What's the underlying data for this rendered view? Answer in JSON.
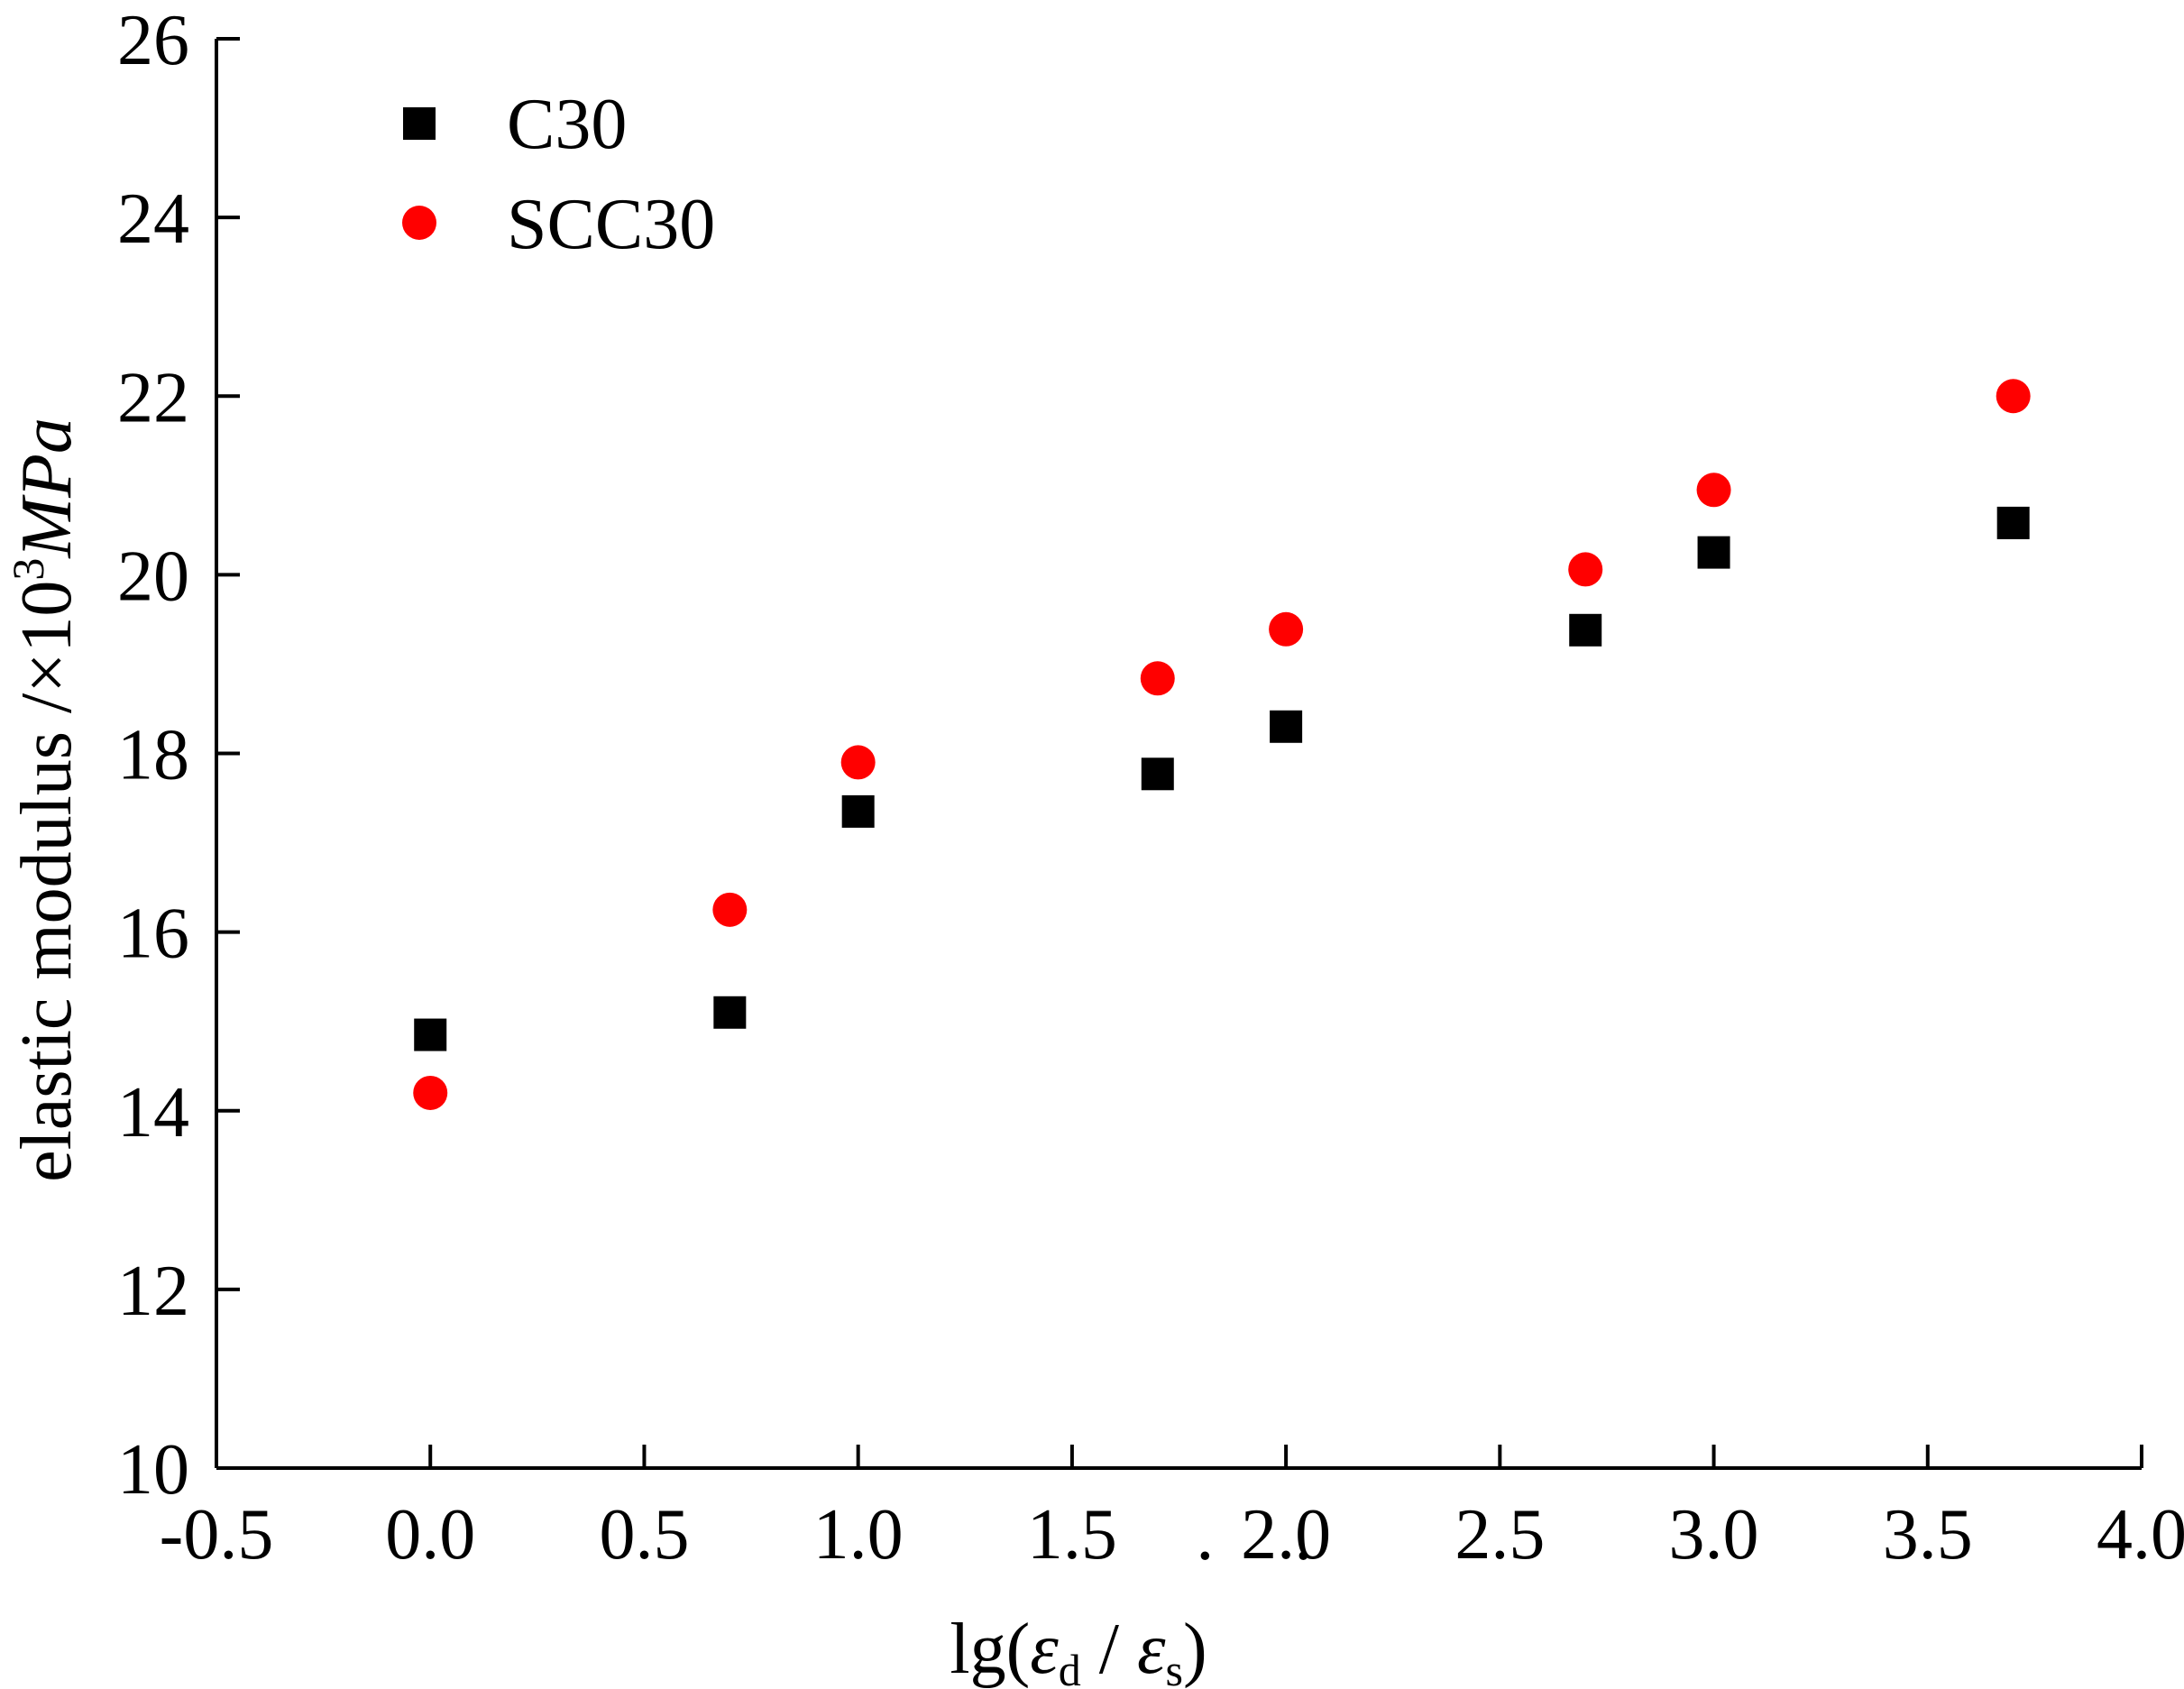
{
  "chart_data": {
    "type": "scatter",
    "title": "",
    "xlabel": {
      "base": "lg(",
      "eps": "ε",
      "sub_d": "d",
      "slash": " / ",
      "sub_s": "s",
      "dot": "·",
      "close": ")"
    },
    "ylabel": {
      "text": "elastic modulus /×10",
      "sup": "3",
      "unit": "MPa"
    },
    "xlim": [
      -0.5,
      4.0
    ],
    "ylim": [
      10,
      26
    ],
    "x_ticks": [
      -0.5,
      0.0,
      0.5,
      1.0,
      1.5,
      2.0,
      2.5,
      3.0,
      3.5,
      4.0
    ],
    "x_tick_labels": [
      "-0.5",
      "0.0",
      "0.5",
      "1.0",
      "1.5",
      "2.0",
      "2.5",
      "3.0",
      "3.5",
      "4.0"
    ],
    "y_ticks": [
      10,
      12,
      14,
      16,
      18,
      20,
      22,
      24,
      26
    ],
    "y_tick_labels": [
      "10",
      "12",
      "14",
      "16",
      "18",
      "20",
      "22",
      "24",
      "26"
    ],
    "legend_position": "top-left",
    "series": [
      {
        "name": "C30",
        "marker": "square",
        "color": "#000000",
        "x": [
          0.0,
          0.7,
          1.0,
          1.7,
          2.0,
          2.7,
          3.0,
          3.7
        ],
        "y": [
          14.85,
          15.1,
          17.35,
          17.77,
          18.3,
          19.38,
          20.25,
          20.58
        ]
      },
      {
        "name": "SCC30",
        "marker": "circle",
        "color": "#ff0000",
        "x": [
          0.0,
          0.7,
          1.0,
          1.7,
          2.0,
          2.7,
          3.0,
          3.7
        ],
        "y": [
          14.2,
          16.25,
          17.9,
          18.84,
          19.39,
          20.06,
          20.95,
          22.0
        ]
      }
    ]
  }
}
